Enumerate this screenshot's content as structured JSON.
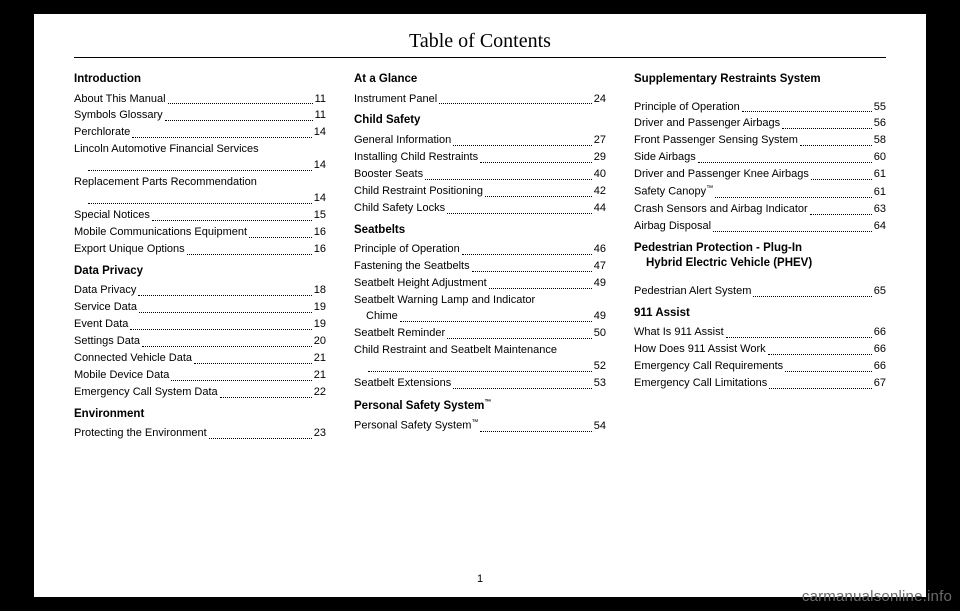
{
  "header": "Table of Contents",
  "page_number": "1",
  "watermark": "carmanualsonline.info",
  "columns": [
    {
      "sections": [
        {
          "title": "Introduction",
          "entries": [
            {
              "label": "About This Manual",
              "page": "11"
            },
            {
              "label": "Symbols Glossary",
              "page": "11"
            },
            {
              "label": "Perchlorate",
              "page": "14"
            },
            {
              "label": "Lincoln Automotive Financial Services",
              "page": "14",
              "wrap": true
            },
            {
              "label": "Replacement Parts Recommendation",
              "page": "14",
              "wrap": true
            },
            {
              "label": "Special Notices",
              "page": "15"
            },
            {
              "label": "Mobile Communications Equipment",
              "page": "16"
            },
            {
              "label": "Export Unique Options",
              "page": "16"
            }
          ]
        },
        {
          "title": "Data Privacy",
          "entries": [
            {
              "label": "Data Privacy",
              "page": "18"
            },
            {
              "label": "Service Data",
              "page": "19"
            },
            {
              "label": "Event Data",
              "page": "19"
            },
            {
              "label": "Settings Data",
              "page": "20"
            },
            {
              "label": "Connected Vehicle Data",
              "page": "21"
            },
            {
              "label": "Mobile Device Data",
              "page": "21"
            },
            {
              "label": "Emergency Call System Data",
              "page": "22"
            }
          ]
        },
        {
          "title": "Environment",
          "entries": [
            {
              "label": "Protecting the Environment",
              "page": "23"
            }
          ]
        }
      ]
    },
    {
      "sections": [
        {
          "title": "At a Glance",
          "entries": [
            {
              "label": "Instrument Panel",
              "page": "24"
            }
          ]
        },
        {
          "title": "Child Safety",
          "entries": [
            {
              "label": "General Information",
              "page": "27"
            },
            {
              "label": "Installing Child Restraints",
              "page": "29"
            },
            {
              "label": "Booster Seats",
              "page": "40"
            },
            {
              "label": "Child Restraint Positioning",
              "page": "42"
            },
            {
              "label": "Child Safety Locks",
              "page": "44"
            }
          ]
        },
        {
          "title": "Seatbelts",
          "entries": [
            {
              "label": "Principle of Operation",
              "page": "46"
            },
            {
              "label": "Fastening the Seatbelts",
              "page": "47"
            },
            {
              "label": "Seatbelt Height Adjustment",
              "page": "49"
            },
            {
              "label": "Seatbelt Warning Lamp and Indicator Chime",
              "page": "49",
              "wrap": true,
              "wrap_at": "Chime"
            },
            {
              "label": "Seatbelt Reminder",
              "page": "50"
            },
            {
              "label": "Child Restraint and Seatbelt Maintenance",
              "page": "52",
              "wrap": true
            },
            {
              "label": "Seatbelt Extensions",
              "page": "53"
            }
          ]
        },
        {
          "title": "Personal Safety System™",
          "tm": true,
          "entries": [
            {
              "label": "Personal Safety System™",
              "page": "54",
              "tm": true
            }
          ]
        }
      ]
    },
    {
      "sections": [
        {
          "title": "Supplementary Restraints System",
          "gap_after_title": true,
          "entries": [
            {
              "label": "Principle of Operation",
              "page": "55"
            },
            {
              "label": "Driver and Passenger Airbags",
              "page": "56"
            },
            {
              "label": "Front Passenger Sensing System",
              "page": "58"
            },
            {
              "label": "Side Airbags",
              "page": "60"
            },
            {
              "label": "Driver and Passenger Knee Airbags",
              "page": "61"
            },
            {
              "label": "Safety Canopy™",
              "page": "61",
              "tm": true
            },
            {
              "label": "Crash Sensors and Airbag Indicator",
              "page": "63"
            },
            {
              "label": "Airbag Disposal",
              "page": "64"
            }
          ]
        },
        {
          "title": "Pedestrian Protection - Plug-In Hybrid Electric Vehicle (PHEV)",
          "multiline_title": true,
          "gap_after_title": true,
          "entries": [
            {
              "label": "Pedestrian Alert System",
              "page": "65"
            }
          ]
        },
        {
          "title": "911 Assist",
          "entries": [
            {
              "label": "What Is 911 Assist",
              "page": "66"
            },
            {
              "label": "How Does 911 Assist Work",
              "page": "66"
            },
            {
              "label": "Emergency Call Requirements",
              "page": "66"
            },
            {
              "label": "Emergency Call Limitations",
              "page": "67"
            }
          ]
        }
      ]
    }
  ]
}
